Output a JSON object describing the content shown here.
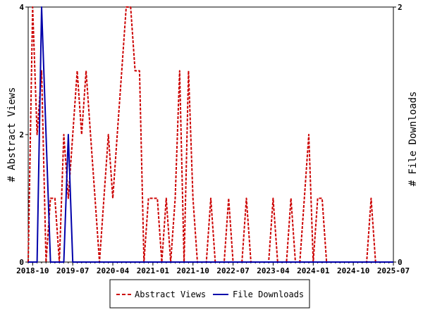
{
  "chart_data": {
    "type": "line",
    "ylabel_left": "# Abstract Views",
    "ylabel_right": "# File Downloads",
    "ylim_left": [
      0,
      4
    ],
    "ylim_right": [
      0,
      2
    ],
    "yticks_left": [
      "0",
      "2",
      "4"
    ],
    "yticks_right": [
      "0",
      "2"
    ],
    "xlim": [
      "2018-09",
      "2025-07"
    ],
    "xticks": [
      "2018-10",
      "2019-07",
      "2020-04",
      "2021-01",
      "2021-10",
      "2022-07",
      "2023-04",
      "2024-01",
      "2024-10",
      "2025-07"
    ],
    "grid": false,
    "legend_placement": "bottom-center",
    "series": [
      {
        "name": "Abstract Views",
        "axis": "left",
        "color": "#cc0000",
        "style": "dashed",
        "x": [
          "2018-09",
          "2018-10",
          "2018-11",
          "2018-12",
          "2019-01",
          "2019-02",
          "2019-03",
          "2019-04",
          "2019-05",
          "2019-06",
          "2019-07",
          "2019-08",
          "2019-09",
          "2019-10",
          "2019-11",
          "2019-12",
          "2020-01",
          "2020-02",
          "2020-03",
          "2020-04",
          "2020-05",
          "2020-06",
          "2020-07",
          "2020-08",
          "2020-09",
          "2020-10",
          "2020-11",
          "2020-12",
          "2021-01",
          "2021-02",
          "2021-03",
          "2021-04",
          "2021-05",
          "2021-06",
          "2021-07",
          "2021-08",
          "2021-09",
          "2021-10",
          "2021-11",
          "2021-12",
          "2022-01",
          "2022-02",
          "2022-03",
          "2022-04",
          "2022-05",
          "2022-06",
          "2022-07",
          "2022-08",
          "2022-09",
          "2022-10",
          "2022-11",
          "2022-12",
          "2023-01",
          "2023-02",
          "2023-03",
          "2023-04",
          "2023-05",
          "2023-06",
          "2023-07",
          "2023-08",
          "2023-09",
          "2023-10",
          "2023-11",
          "2023-12",
          "2024-01",
          "2024-02",
          "2024-03",
          "2024-04",
          "2024-05",
          "2024-06",
          "2024-07",
          "2024-08",
          "2024-09",
          "2024-10",
          "2024-11",
          "2024-12",
          "2025-01",
          "2025-02",
          "2025-03",
          "2025-04",
          "2025-05",
          "2025-06",
          "2025-07"
        ],
        "values": [
          0,
          4,
          2,
          3,
          0,
          1,
          1,
          0,
          2,
          1,
          2,
          3,
          2,
          3,
          2,
          1,
          0,
          1,
          2,
          1,
          2,
          3,
          4,
          4,
          3,
          3,
          0,
          1,
          1,
          1,
          0,
          1,
          0,
          1,
          3,
          0,
          3,
          1,
          0,
          0,
          0,
          1,
          0,
          0,
          0,
          1,
          0,
          0,
          0,
          1,
          0,
          0,
          0,
          0,
          0,
          1,
          0,
          0,
          0,
          1,
          0,
          0,
          1,
          2,
          0,
          1,
          1,
          0,
          0,
          0,
          0,
          0,
          0,
          0,
          0,
          0,
          0,
          1,
          0,
          0,
          0,
          0,
          0
        ]
      },
      {
        "name": "File Downloads",
        "axis": "right",
        "color": "#0000aa",
        "style": "solid",
        "x": [
          "2018-09",
          "2018-10",
          "2018-11",
          "2018-12",
          "2019-01",
          "2019-02",
          "2019-03",
          "2019-04",
          "2019-05",
          "2019-06",
          "2019-07",
          "2019-08",
          "2019-09",
          "2019-10",
          "2019-11",
          "2019-12",
          "2020-01",
          "2020-02",
          "2020-03",
          "2020-04",
          "2020-05",
          "2020-06",
          "2020-07",
          "2020-08",
          "2020-09",
          "2020-10",
          "2020-11",
          "2020-12",
          "2021-01",
          "2021-02",
          "2021-03",
          "2021-04",
          "2021-05",
          "2021-06",
          "2021-07",
          "2021-08",
          "2021-09",
          "2021-10",
          "2021-11",
          "2021-12",
          "2022-01",
          "2022-02",
          "2022-03",
          "2022-04",
          "2022-05",
          "2022-06",
          "2022-07",
          "2022-08",
          "2022-09",
          "2022-10",
          "2022-11",
          "2022-12",
          "2023-01",
          "2023-02",
          "2023-03",
          "2023-04",
          "2023-05",
          "2023-06",
          "2023-07",
          "2023-08",
          "2023-09",
          "2023-10",
          "2023-11",
          "2023-12",
          "2024-01",
          "2024-02",
          "2024-03",
          "2024-04",
          "2024-05",
          "2024-06",
          "2024-07",
          "2024-08",
          "2024-09",
          "2024-10",
          "2024-11",
          "2024-12",
          "2025-01",
          "2025-02",
          "2025-03",
          "2025-04",
          "2025-05",
          "2025-06",
          "2025-07"
        ],
        "values": [
          0,
          0,
          0,
          2,
          1,
          0,
          0,
          0,
          0,
          1,
          0,
          0,
          0,
          0,
          0,
          0,
          0,
          0,
          0,
          0,
          0,
          0,
          0,
          0,
          0,
          0,
          0,
          0,
          0,
          0,
          0,
          0,
          0,
          0,
          0,
          0,
          0,
          0,
          0,
          0,
          0,
          0,
          0,
          0,
          0,
          0,
          0,
          0,
          0,
          0,
          0,
          0,
          0,
          0,
          0,
          0,
          0,
          0,
          0,
          0,
          0,
          0,
          0,
          0,
          0,
          0,
          0,
          0,
          0,
          0,
          0,
          0,
          0,
          0,
          0,
          0,
          0,
          0,
          0,
          0,
          0,
          0,
          0
        ]
      }
    ]
  },
  "legend": {
    "items": [
      {
        "label": "Abstract Views",
        "color": "#cc0000",
        "style": "dashed"
      },
      {
        "label": "File Downloads",
        "color": "#0000aa",
        "style": "solid"
      }
    ]
  }
}
